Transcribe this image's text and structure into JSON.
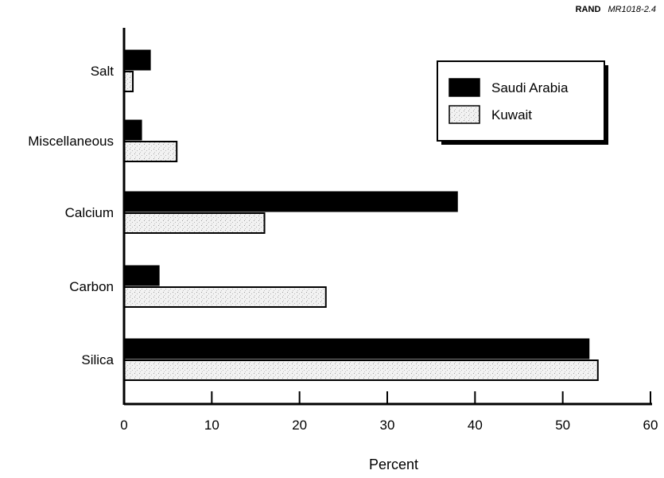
{
  "source_tag": {
    "org": "RAND",
    "code": "MR1018-2.4"
  },
  "colors": {
    "saudi": "#000000",
    "kuwait": "#f2f2f2",
    "kuwait_stipple": "#9a9a9a",
    "axis": "#000000"
  },
  "chart_data": {
    "type": "bar",
    "orientation": "horizontal",
    "title": "",
    "xlabel": "Percent",
    "ylabel": "",
    "xlim": [
      0,
      60
    ],
    "xticks": [
      0,
      10,
      20,
      30,
      40,
      50,
      60
    ],
    "categories": [
      "Salt",
      "Miscellaneous",
      "Calcium",
      "Carbon",
      "Silica"
    ],
    "series": [
      {
        "name": "Saudi Arabia",
        "values": [
          3,
          2,
          38,
          4,
          53
        ]
      },
      {
        "name": "Kuwait",
        "values": [
          1,
          6,
          16,
          23,
          54
        ]
      }
    ],
    "legend_position": "top-right",
    "grid": false
  }
}
